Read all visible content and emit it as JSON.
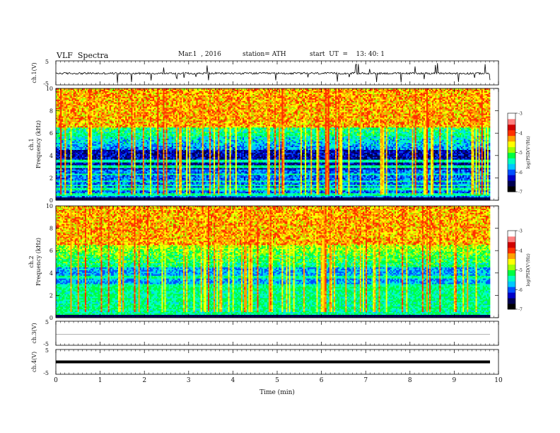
{
  "header": {
    "title": "VLF  Spectra",
    "date": "Mar.1  , 2016",
    "station": "station= ATH",
    "start": "start  UT  =    13: 40: 1"
  },
  "chart_data": {
    "type": "heatmap",
    "xlabel": "Time  (min)",
    "xlim": [
      0,
      10
    ],
    "x_ticks": [
      "0",
      "1",
      "2",
      "3",
      "4",
      "5",
      "6",
      "7",
      "8",
      "9",
      "10"
    ],
    "panels": [
      {
        "id": "ch1_wave",
        "type": "line",
        "ylabel": "ch.1(V)",
        "ylim": [
          -5,
          5
        ],
        "y_ticks": [
          "5",
          "-5"
        ],
        "baseline_v": -0.2,
        "amplitude_v": 0.4
      },
      {
        "id": "ch1_spec",
        "type": "heatmap",
        "ylabel": "ch.1\nFrequency  (kHz)",
        "ylim": [
          0,
          10
        ],
        "y_ticks": [
          "0",
          "2",
          "4",
          "6",
          "8",
          "10"
        ],
        "colorbar": {
          "label": "log(PSD(V²/Hz)",
          "range": [
            -7,
            -3
          ],
          "ticks": [
            "-3",
            "-4",
            "-5",
            "-6",
            "-7"
          ]
        }
      },
      {
        "id": "ch2_spec",
        "type": "heatmap",
        "ylabel": "ch.2\nFrequency  (kHz)",
        "ylim": [
          0,
          10
        ],
        "y_ticks": [
          "0",
          "2",
          "4",
          "6",
          "8",
          "10"
        ],
        "colorbar": {
          "label": "log(PSD(V²/Hz)",
          "range": [
            -7,
            -3
          ],
          "ticks": [
            "-3",
            "-4",
            "-5",
            "-6",
            "-7"
          ]
        }
      },
      {
        "id": "ch3_wave",
        "type": "line",
        "ylabel": "ch.3(V)",
        "ylim": [
          -5,
          5
        ],
        "y_ticks": [
          "5",
          "-5"
        ],
        "baseline_v": 0.0,
        "amplitude_v": 0.0
      },
      {
        "id": "ch4_wave",
        "type": "line",
        "ylabel": "ch.4(V)",
        "ylim": [
          -5,
          5
        ],
        "y_ticks": [
          "5",
          "-5"
        ],
        "baseline_v": 0.0,
        "amplitude_v": 0.0
      }
    ],
    "colors": {
      "colormap": [
        "#000000",
        "#000050",
        "#0000c8",
        "#0050ff",
        "#00c8ff",
        "#00ffc0",
        "#00ff40",
        "#a0ff00",
        "#ffff00",
        "#ffa000",
        "#ff3000",
        "#d00000",
        "#ff8080",
        "#ffffff"
      ]
    }
  }
}
